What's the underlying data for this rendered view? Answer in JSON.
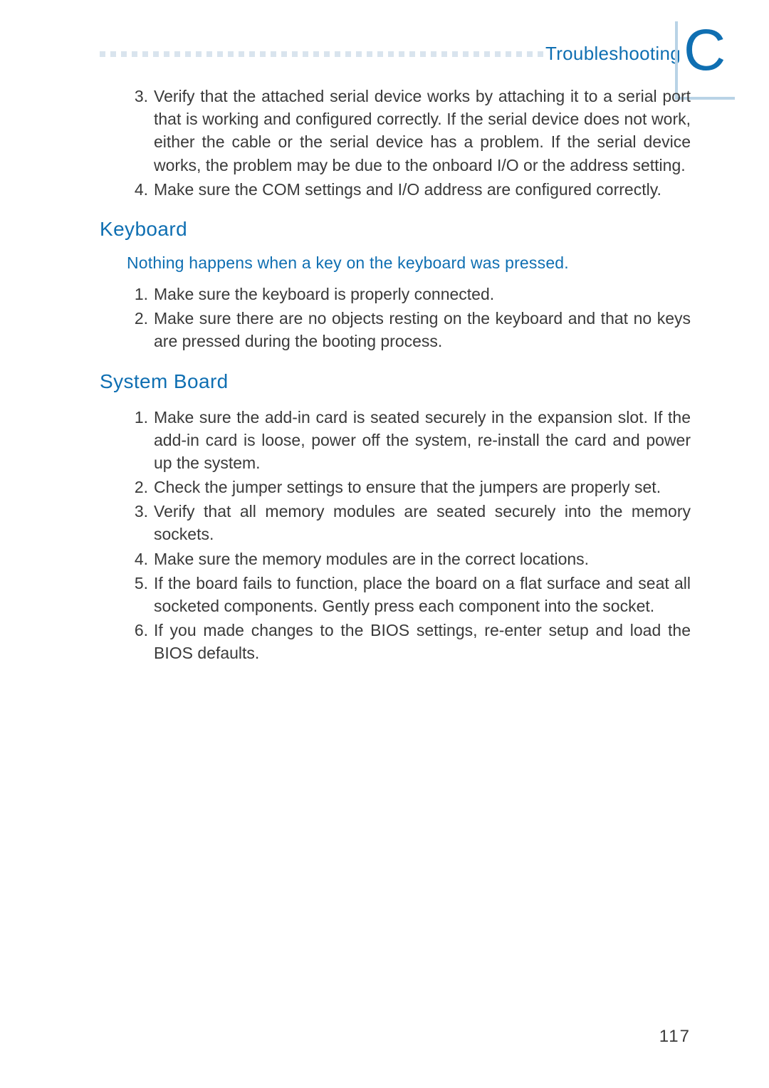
{
  "header": {
    "title": "Troubleshooting",
    "corner_letter": "C"
  },
  "intro_list": {
    "start": 3,
    "items": [
      {
        "num": "3.",
        "text": "Verify that the attached serial device works by attaching it to a serial port that is working and configured correctly. If the serial device does not work, either the cable or the serial device has a problem. If the serial device works, the problem may be due to the onboard I/O or the address setting."
      },
      {
        "num": "4.",
        "text": "Make sure the COM settings and I/O address are configured correctly."
      }
    ]
  },
  "sections": [
    {
      "heading": "Keyboard",
      "subhead": "Nothing happens when a key on the keyboard was pressed.",
      "items": [
        {
          "num": "1.",
          "text": "Make sure the keyboard is properly connected."
        },
        {
          "num": "2.",
          "text": "Make sure there are no objects resting on the keyboard and that no keys are pressed during the booting process."
        }
      ]
    },
    {
      "heading": "System Board",
      "subhead": "",
      "items": [
        {
          "num": "1.",
          "text": "Make sure the add-in card is seated securely in the expansion slot. If the add-in card is loose, power off the system, re-install the card and power up the system."
        },
        {
          "num": "2.",
          "text": "Check the jumper settings to ensure that the jumpers are properly set."
        },
        {
          "num": "3.",
          "text": "Verify that all memory modules are seated securely into the memory sockets."
        },
        {
          "num": "4.",
          "text": "Make sure the memory modules are in the correct locations."
        },
        {
          "num": "5.",
          "text": "If the board fails to function, place the board on a flat surface and seat all socketed components. Gently press each component into the socket."
        },
        {
          "num": "6.",
          "text": "If you made changes to the BIOS settings, re-enter setup and load the BIOS defaults."
        }
      ]
    }
  ],
  "page_number": "117",
  "colors": {
    "accent": "#0f6fb2",
    "dot": "#d9e4ee",
    "corner_line": "#b9d3e6",
    "body_text": "#3a3a3a"
  }
}
